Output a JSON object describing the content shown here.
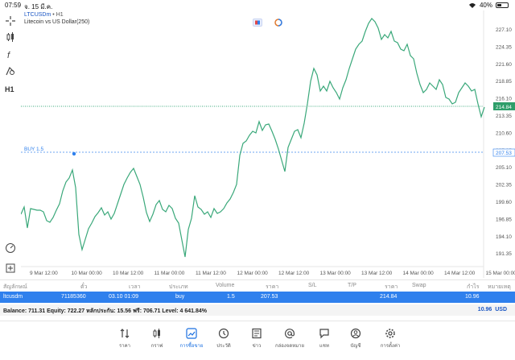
{
  "status": {
    "time": "07:59",
    "date": "จ. 15 มี.ค.",
    "battery": "40%"
  },
  "chart": {
    "symbol": "LTCUSDm",
    "timeframe": "H1",
    "subtitle": "Litecoin vs US Dollar(250)",
    "current_price": "214.84",
    "buy_label": "BUY 1.5",
    "buy_price": "207.53",
    "price_labels": [
      "227.10",
      "224.35",
      "221.60",
      "218.85",
      "216.10",
      "213.35",
      "210.60",
      "207.85",
      "205.10",
      "202.35",
      "199.60",
      "196.85",
      "194.10",
      "191.35"
    ],
    "time_labels": [
      "9 Mar 12:00",
      "10 Mar 00:00",
      "10 Mar 12:00",
      "11 Mar 00:00",
      "11 Mar 12:00",
      "12 Mar 00:00",
      "12 Mar 12:00",
      "13 Mar 00:00",
      "13 Mar 12:00",
      "14 Mar 00:00",
      "14 Mar 12:00",
      "15 Mar 00:00"
    ],
    "colors": {
      "line": "#3aa87a",
      "price_tag": "#2e9e6a",
      "buy": "#2f80ed"
    }
  },
  "trade_table": {
    "headers": [
      "สัญลักษณ์",
      "ตั๋ว",
      "เวลา",
      "ประเภท",
      "Volume",
      "ราคา",
      "S/L",
      "T/P",
      "ราคา",
      "Swap",
      "กำไร",
      "หมายเหตุ"
    ],
    "row": {
      "symbol": "ltcusdm",
      "ticket": "71185360",
      "time": "03.10 01:09",
      "type": "buy",
      "volume": "1.5",
      "open_price": "207.53",
      "sl": "",
      "tp": "",
      "price": "214.84",
      "swap": "",
      "profit": "10.96",
      "comment": ""
    }
  },
  "balance": {
    "text": "Balance: 711.31 Equity: 722.27 หลักประกัน: 15.56 ฟรี: 706.71 Level: 4 641.84%",
    "profit": "10.96",
    "currency": "USD"
  },
  "nav": [
    {
      "label": "ราคา",
      "icon": "arrows-updown-icon"
    },
    {
      "label": "กราฟ",
      "icon": "candles-icon"
    },
    {
      "label": "การซื้อขาย",
      "icon": "trade-chart-icon",
      "active": true
    },
    {
      "label": "ประวัติ",
      "icon": "history-icon"
    },
    {
      "label": "ข่าว",
      "icon": "news-icon"
    },
    {
      "label": "กล่องจดหมาย",
      "icon": "mail-at-icon"
    },
    {
      "label": "แชท",
      "icon": "chat-icon"
    },
    {
      "label": "บัญชี",
      "icon": "account-icon"
    },
    {
      "label": "การตั้งค่า",
      "icon": "settings-icon"
    }
  ]
}
